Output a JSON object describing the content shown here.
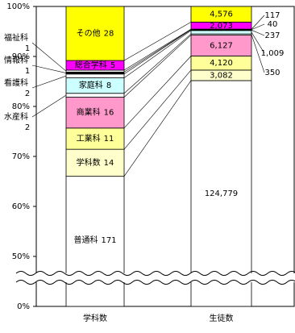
{
  "chart_data": {
    "type": "stacked_bar_100",
    "categories": [
      "学科数",
      "生徒数"
    ],
    "series": [
      {
        "name": "普通科",
        "color": "#ffffff",
        "values": [
          171,
          124779
        ],
        "value_labels": [
          "171",
          "124,779"
        ]
      },
      {
        "name": "学科数",
        "color": "#ffffcc",
        "values": [
          14,
          3082
        ],
        "value_labels": [
          "14",
          "3,082"
        ]
      },
      {
        "name": "工業科",
        "color": "#ffff99",
        "values": [
          11,
          4120
        ],
        "value_labels": [
          "11",
          "4,120"
        ]
      },
      {
        "name": "商業科",
        "color": "#ff99cc",
        "values": [
          16,
          6127
        ],
        "value_labels": [
          "16",
          "6,127"
        ]
      },
      {
        "name": "水産科",
        "color": "#ffffff",
        "values": [
          2,
          350
        ],
        "value_labels": [
          "2",
          "350"
        ]
      },
      {
        "name": "家庭科",
        "color": "#ccffff",
        "values": [
          8,
          1009
        ],
        "value_labels": [
          "8",
          "1,009"
        ]
      },
      {
        "name": "看護科",
        "color": "#ffffff",
        "values": [
          2,
          237
        ],
        "value_labels": [
          "2",
          "237"
        ]
      },
      {
        "name": "情報科",
        "color": "#000000",
        "values": [
          1,
          40
        ],
        "value_labels": [
          "1",
          "40"
        ]
      },
      {
        "name": "福祉科",
        "color": "#ffffff",
        "values": [
          1,
          117
        ],
        "value_labels": [
          "1",
          "117"
        ]
      },
      {
        "name": "総合学科",
        "color": "#ff00ff",
        "values": [
          5,
          2073
        ],
        "value_labels": [
          "5",
          "2,073"
        ]
      },
      {
        "name": "その他",
        "color": "#ffff00",
        "values": [
          28,
          4576
        ],
        "value_labels": [
          "28",
          "4,576"
        ]
      }
    ],
    "ylim": [
      0,
      100
    ],
    "axis_break": [
      0,
      40
    ],
    "yticks": [
      {
        "value": 0,
        "label": "0%"
      },
      {
        "value": 50,
        "label": "50%"
      },
      {
        "value": 60,
        "label": "60%"
      },
      {
        "value": 70,
        "label": "70%"
      },
      {
        "value": 80,
        "label": "80%"
      },
      {
        "value": 90,
        "label": "90%"
      },
      {
        "value": 100,
        "label": "100%"
      }
    ]
  }
}
